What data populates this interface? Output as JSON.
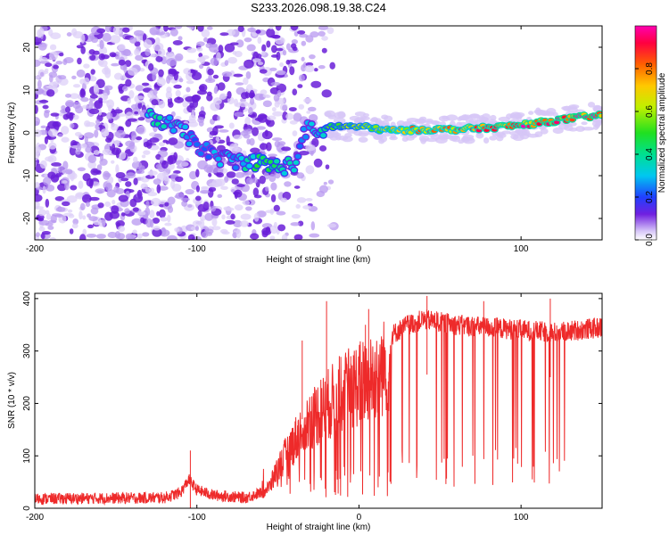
{
  "title": "S233.2026.098.19.38.C24",
  "colors": {
    "purple_dark": "#6a1ed8",
    "purple_light": "#d6c6f6",
    "snr_line": "#ee2a2a",
    "axis": "#000000"
  },
  "chart_data": [
    {
      "type": "heatmap",
      "name": "spectrogram",
      "xlabel": "Height of straight line (km)",
      "ylabel": "Frequency (Hz)",
      "xlim": [
        -200,
        150
      ],
      "ylim": [
        -25,
        25
      ],
      "xticks": [
        -200,
        -100,
        0,
        100
      ],
      "xtick_labels": [
        "-200",
        "-100",
        "0",
        "100"
      ],
      "yticks": [
        -20,
        -10,
        0,
        10,
        20
      ],
      "ytick_labels": [
        "-20",
        "-10",
        "0",
        "10",
        "20"
      ],
      "ridge": {
        "x": [
          -125,
          -110,
          -100,
          -90,
          -75,
          -60,
          -50,
          -40,
          -32,
          -25,
          -20,
          0,
          20,
          40,
          60,
          80,
          100,
          120,
          140,
          150
        ],
        "freq": [
          3.5,
          0.5,
          -2.5,
          -5.5,
          -6.5,
          -7.0,
          -8.0,
          -7.5,
          1.5,
          -1.0,
          1.5,
          1.5,
          0.5,
          0.8,
          0.8,
          1.2,
          1.8,
          2.8,
          3.8,
          4.0
        ],
        "amplitude": [
          0.35,
          0.3,
          0.25,
          0.25,
          0.3,
          0.45,
          0.4,
          0.3,
          0.25,
          0.3,
          0.45,
          0.55,
          0.65,
          0.75,
          0.75,
          0.8,
          0.85,
          0.85,
          0.9,
          0.85
        ]
      },
      "colorbar": {
        "label": "Normalized spectral amplitude",
        "range": [
          0,
          1
        ],
        "ticks": [
          0.0,
          0.2,
          0.4,
          0.6,
          0.8
        ],
        "tick_labels": [
          "0.0",
          "0.2",
          "0.4",
          "0.6",
          "0.8"
        ]
      }
    },
    {
      "type": "line",
      "name": "snr",
      "xlabel": "Height of straight line (km)",
      "ylabel": "SNR (10 * v/v)",
      "xlim": [
        -200,
        150
      ],
      "ylim": [
        0,
        410
      ],
      "xticks": [
        -200,
        -100,
        0,
        100
      ],
      "xtick_labels": [
        "-200",
        "-100",
        "0",
        "100"
      ],
      "yticks": [
        0,
        100,
        200,
        300,
        400
      ],
      "ytick_labels": [
        "0",
        "100",
        "200",
        "300",
        "400"
      ],
      "envelope": {
        "x": [
          -200,
          -120,
          -110,
          -105,
          -100,
          -90,
          -70,
          -60,
          -55,
          -50,
          -40,
          -30,
          -20,
          -10,
          0,
          10,
          20,
          30,
          40,
          60,
          80,
          100,
          120,
          150
        ],
        "snr": [
          18,
          20,
          30,
          55,
          35,
          25,
          20,
          30,
          50,
          90,
          150,
          200,
          230,
          260,
          280,
          300,
          330,
          350,
          360,
          350,
          345,
          340,
          335,
          345
        ]
      },
      "spikes": [
        {
          "x": -104,
          "snr": 110
        },
        {
          "x": -35,
          "snr": 320
        },
        {
          "x": -20,
          "snr": 395
        },
        {
          "x": -5,
          "snr": 290
        },
        {
          "x": 4,
          "snr": 350
        },
        {
          "x": 6,
          "snr": 380
        },
        {
          "x": 42,
          "snr": 405
        },
        {
          "x": 77,
          "snr": 395
        },
        {
          "x": 118,
          "snr": 400
        }
      ]
    }
  ]
}
